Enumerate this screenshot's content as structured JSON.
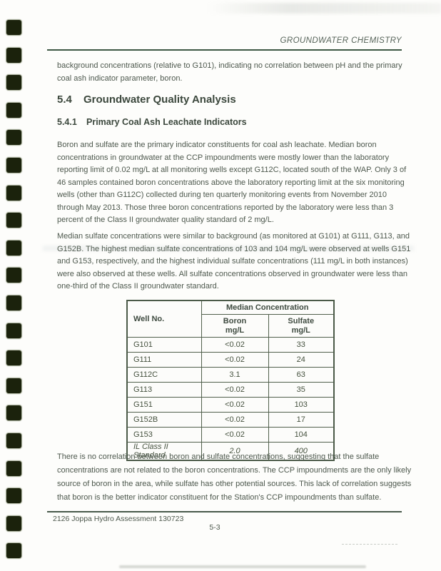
{
  "page": {
    "header": {
      "title": "GROUNDWATER CHEMISTRY"
    },
    "intro_paragraph": "background concentrations (relative to G101), indicating no correlation between pH and the primary coal ash indicator parameter, boron.",
    "section": {
      "number": "5.4",
      "title": "Groundwater Quality Analysis"
    },
    "subsection": {
      "number": "5.4.1",
      "title": "Primary Coal Ash Leachate Indicators"
    },
    "paragraphs": [
      "Boron and sulfate are the primary indicator constituents for coal ash leachate. Median boron concentrations in groundwater at the CCP impoundments were mostly lower than the laboratory reporting limit of 0.02 mg/L at all monitoring wells except G112C, located south of the WAP. Only 3 of 46 samples contained boron concentrations above the laboratory reporting limit at the six monitoring wells (other than G112C) collected during ten quarterly monitoring events from November 2010 through May 2013. Those three boron concentrations reported by the laboratory were less than 3 percent of the Class II groundwater quality standard of 2 mg/L.",
      "Median sulfate concentrations were similar to background (as monitored at G101) at G111, G113, and G152B. The highest median sulfate concentrations of 103 and 104 mg/L were observed at wells G151 and G153, respectively, and the highest individual sulfate concentrations (111 mg/L in both instances) were also observed at these wells. All sulfate concentrations observed in groundwater were less than one-third of the Class II groundwater standard.",
      "There is no correlation between boron and sulfate concentrations, suggesting that the sulfate concentrations are not related to the boron concentrations. The CCP impoundments are the only likely source of boron in the area, while sulfate has other potential sources. This lack of correlation suggests that boron is the better indicator constituent for the Station's CCP impoundments than sulfate."
    ],
    "footer": {
      "document_id": "2126 Joppa Hydro Assessment 130723",
      "page_number": "5-3"
    }
  },
  "table": {
    "well_column_header": "Well No.",
    "group_header": "Median Concentration",
    "columns": [
      {
        "label": "Boron",
        "unit": "mg/L"
      },
      {
        "label": "Sulfate",
        "unit": "mg/L"
      }
    ],
    "rows": [
      {
        "well": "G101",
        "boron": "<0.02",
        "sulfate": "33",
        "italic": false
      },
      {
        "well": "G111",
        "boron": "<0.02",
        "sulfate": "24",
        "italic": false
      },
      {
        "well": "G112C",
        "boron": "3.1",
        "sulfate": "63",
        "italic": false
      },
      {
        "well": "G113",
        "boron": "<0.02",
        "sulfate": "35",
        "italic": false
      },
      {
        "well": "G151",
        "boron": "<0.02",
        "sulfate": "103",
        "italic": false
      },
      {
        "well": "G152B",
        "boron": "<0.02",
        "sulfate": "17",
        "italic": false
      },
      {
        "well": "G153",
        "boron": "<0.02",
        "sulfate": "104",
        "italic": false
      },
      {
        "well": "IL Class II Standard",
        "boron": "2.0",
        "sulfate": "400",
        "italic": true
      }
    ]
  },
  "binding": {
    "hole_count": 20,
    "color": "#1b220c"
  },
  "colors": {
    "paper": "#fdfdfb",
    "ink": "#4d584d",
    "heading_ink": "#3b473c",
    "rule_green": "#3d5743",
    "table_border": "#4b5a48"
  }
}
